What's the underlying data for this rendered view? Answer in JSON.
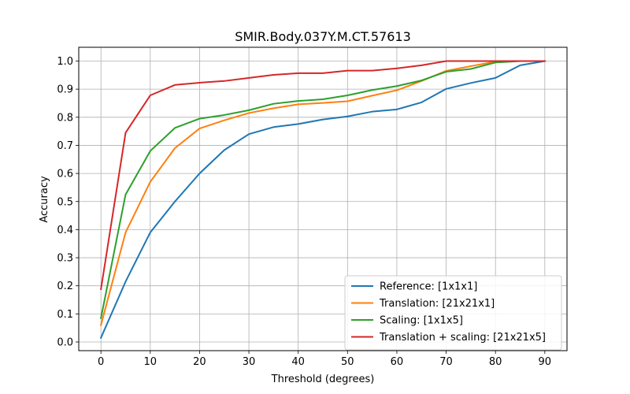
{
  "chart_data": {
    "type": "line",
    "title": "SMIR.Body.037Y.M.CT.57613",
    "xlabel": "Threshold (degrees)",
    "ylabel": "Accuracy",
    "xlim": [
      0,
      90
    ],
    "ylim": [
      0.0,
      1.0
    ],
    "xticks": [
      "0",
      "10",
      "20",
      "30",
      "40",
      "50",
      "60",
      "70",
      "80",
      "90"
    ],
    "yticks": [
      "0.0",
      "0.1",
      "0.2",
      "0.3",
      "0.4",
      "0.5",
      "0.6",
      "0.7",
      "0.8",
      "0.9",
      "1.0"
    ],
    "grid": true,
    "legend_position": "lower-right",
    "x": [
      0,
      5,
      10,
      15,
      20,
      25,
      30,
      35,
      40,
      45,
      50,
      55,
      60,
      65,
      70,
      75,
      80,
      85,
      90
    ],
    "series": [
      {
        "name": "Reference: [1x1x1]",
        "color": "#1f77b4",
        "values": [
          0.015,
          0.215,
          0.39,
          0.5,
          0.6,
          0.683,
          0.74,
          0.765,
          0.776,
          0.792,
          0.803,
          0.82,
          0.828,
          0.853,
          0.901,
          0.922,
          0.94,
          0.985,
          1.0
        ]
      },
      {
        "name": "Translation: [21x21x1]",
        "color": "#ff7f0e",
        "values": [
          0.06,
          0.39,
          0.57,
          0.69,
          0.76,
          0.789,
          0.815,
          0.832,
          0.846,
          0.851,
          0.857,
          0.877,
          0.896,
          0.929,
          0.965,
          0.982,
          0.998,
          1.0,
          1.0
        ]
      },
      {
        "name": "Scaling: [1x1x5]",
        "color": "#2ca02c",
        "values": [
          0.085,
          0.525,
          0.68,
          0.762,
          0.795,
          0.808,
          0.825,
          0.848,
          0.858,
          0.864,
          0.878,
          0.897,
          0.911,
          0.931,
          0.962,
          0.972,
          0.995,
          1.0,
          1.0
        ]
      },
      {
        "name": "Translation + scaling: [21x21x5]",
        "color": "#d62728",
        "values": [
          0.188,
          0.745,
          0.878,
          0.915,
          0.923,
          0.929,
          0.94,
          0.951,
          0.957,
          0.957,
          0.966,
          0.966,
          0.974,
          0.985,
          1.0,
          1.0,
          1.0,
          1.0,
          1.0
        ]
      }
    ]
  }
}
